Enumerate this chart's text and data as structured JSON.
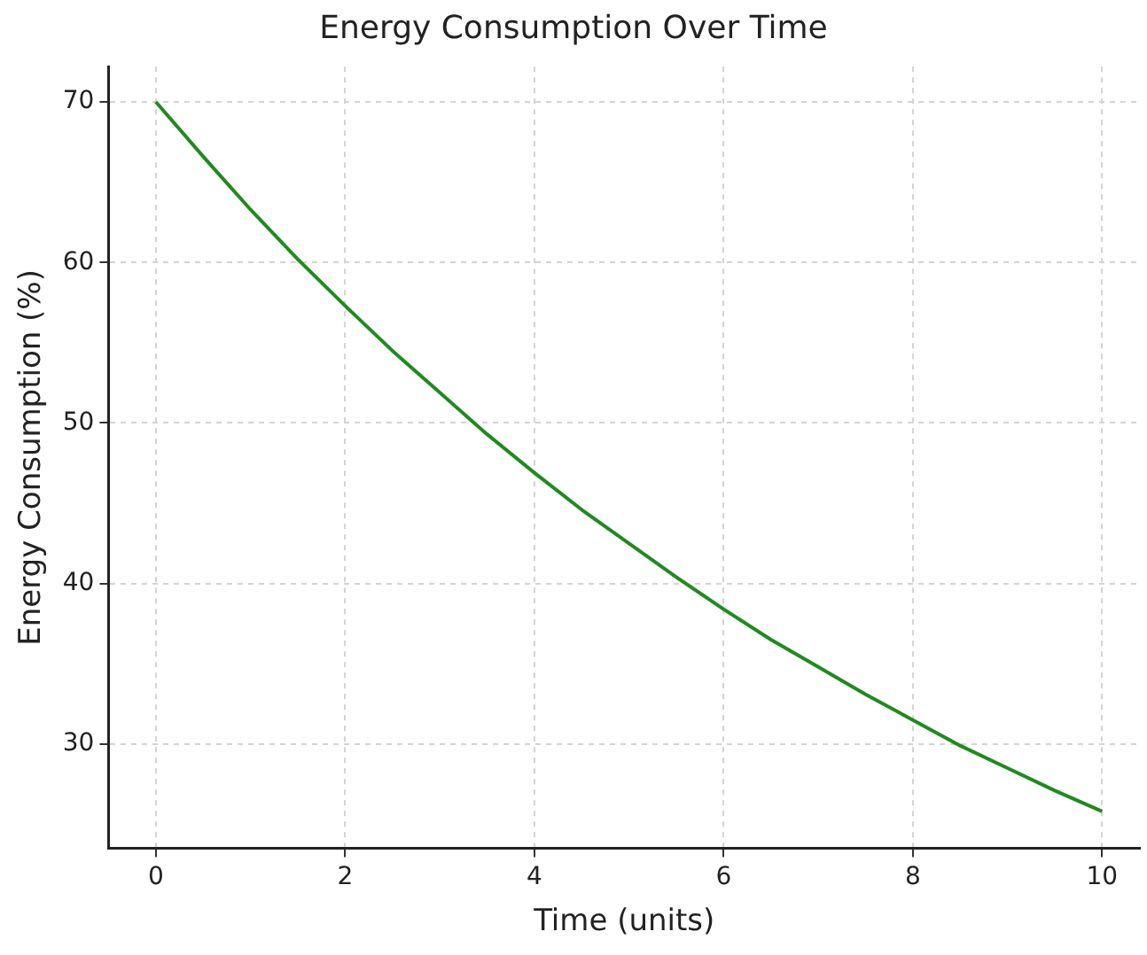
{
  "chart_data": {
    "type": "line",
    "title": "Energy Consumption Over Time",
    "xlabel": "Time (units)",
    "ylabel": "Energy Consumption (%)",
    "x": [
      0,
      0.5,
      1,
      1.5,
      2,
      2.5,
      3,
      3.5,
      4,
      4.5,
      5,
      5.5,
      6,
      6.5,
      7,
      7.5,
      8,
      8.5,
      9,
      9.5,
      10
    ],
    "series": [
      {
        "color": "#208a20",
        "values": [
          70,
          66.6,
          63.3,
          60.2,
          57.3,
          54.5,
          51.9,
          49.3,
          46.9,
          44.6,
          42.5,
          40.4,
          38.4,
          36.5,
          34.8,
          33.1,
          31.5,
          29.9,
          28.5,
          27.1,
          25.8
        ]
      }
    ],
    "xlim": [
      -0.5,
      10.4
    ],
    "xticks": [
      0,
      2,
      4,
      6,
      8,
      10
    ],
    "ylim": [
      23.5,
      72.2
    ],
    "yticks": [
      30,
      40,
      50,
      60,
      70
    ],
    "grid": true,
    "legend": false,
    "marker": "none",
    "line_style": "solid"
  }
}
